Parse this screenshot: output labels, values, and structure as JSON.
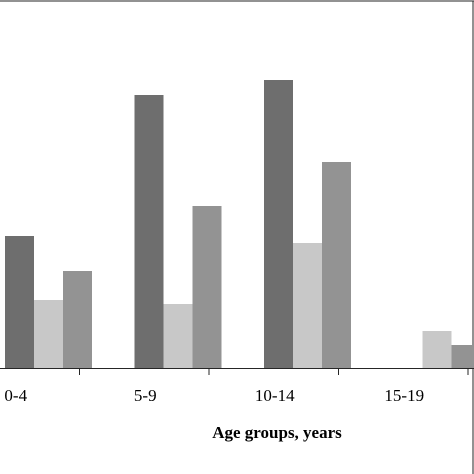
{
  "chart_data": {
    "type": "bar",
    "title": "",
    "xlabel": "Age groups, years",
    "ylabel": "",
    "categories": [
      "0-4",
      "5-9",
      "10-14",
      "15-19"
    ],
    "series": [
      {
        "color": "#6e6e6e",
        "values": [
          132,
          273,
          288,
          0
        ]
      },
      {
        "color": "#c8c8c8",
        "values": [
          68,
          64,
          125,
          37
        ]
      },
      {
        "color": "#939393",
        "values": [
          97,
          162,
          206,
          23
        ]
      }
    ],
    "ylim": [
      0,
      368
    ],
    "grid": false,
    "legend": "none"
  }
}
